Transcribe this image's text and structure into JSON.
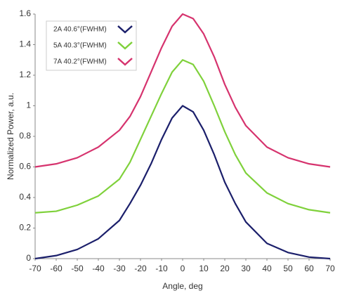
{
  "chart_data": {
    "type": "line",
    "x_label": "Angle, deg",
    "y_label": "Normalized Power, a.u.",
    "x": [
      -70,
      -60,
      -50,
      -40,
      -30,
      -25,
      -20,
      -15,
      -10,
      -5,
      0,
      5,
      10,
      15,
      20,
      25,
      30,
      40,
      50,
      60,
      70
    ],
    "series": [
      {
        "name": "2A 40.6°(FWHM)",
        "color": "#1b1f6b",
        "values": [
          0,
          0.02,
          0.06,
          0.13,
          0.25,
          0.36,
          0.48,
          0.62,
          0.78,
          0.92,
          1.0,
          0.96,
          0.84,
          0.68,
          0.5,
          0.36,
          0.24,
          0.1,
          0.04,
          0.01,
          0
        ]
      },
      {
        "name": "5A 40.3°(FWHM)",
        "color": "#7fd13b",
        "values": [
          0.3,
          0.31,
          0.35,
          0.41,
          0.52,
          0.63,
          0.78,
          0.93,
          1.08,
          1.22,
          1.3,
          1.27,
          1.16,
          1.0,
          0.83,
          0.68,
          0.56,
          0.43,
          0.36,
          0.32,
          0.3
        ]
      },
      {
        "name": "7A 40.2°(FWHM)",
        "color": "#d6336e",
        "values": [
          0.6,
          0.62,
          0.66,
          0.73,
          0.84,
          0.93,
          1.06,
          1.22,
          1.38,
          1.52,
          1.6,
          1.57,
          1.47,
          1.32,
          1.14,
          0.99,
          0.87,
          0.73,
          0.66,
          0.62,
          0.6
        ]
      }
    ],
    "xlim": [
      -70,
      70
    ],
    "xticks": [
      -70,
      -60,
      -50,
      -40,
      -30,
      -20,
      -10,
      0,
      10,
      20,
      30,
      40,
      50,
      60,
      70
    ],
    "ylim": [
      0,
      1.6
    ],
    "yticks": [
      0,
      0.2,
      0.4,
      0.6,
      0.8,
      1,
      1.2,
      1.4,
      1.6
    ],
    "grid": false,
    "legend": "upper left"
  }
}
